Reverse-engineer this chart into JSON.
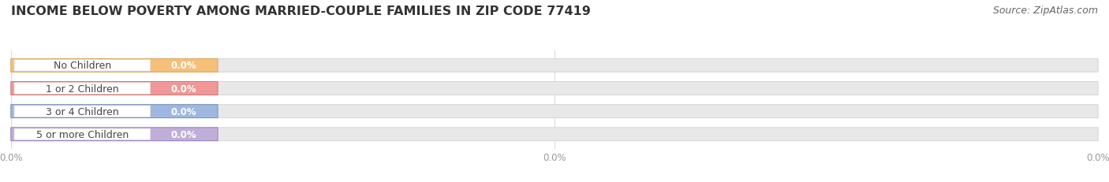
{
  "title": "INCOME BELOW POVERTY AMONG MARRIED-COUPLE FAMILIES IN ZIP CODE 77419",
  "source": "Source: ZipAtlas.com",
  "categories": [
    "No Children",
    "1 or 2 Children",
    "3 or 4 Children",
    "5 or more Children"
  ],
  "values": [
    0.0,
    0.0,
    0.0,
    0.0
  ],
  "bar_colors": [
    "#f5c078",
    "#f09898",
    "#a0b8e0",
    "#c0aed8"
  ],
  "bar_edge_colors": [
    "#d8a050",
    "#d06868",
    "#6888b8",
    "#9070b8"
  ],
  "background_color": "#ffffff",
  "bar_bg_color": "#e8e8e8",
  "bar_bg_edge_color": "#d0d0d0",
  "white_pill_color": "#ffffff",
  "white_pill_edge": "#dddddd",
  "label_color": "#444444",
  "value_text_color": "#ffffff",
  "title_fontsize": 11.5,
  "source_fontsize": 9,
  "label_fontsize": 9,
  "value_fontsize": 8.5,
  "tick_fontsize": 8.5,
  "tick_color": "#999999",
  "figsize": [
    14.06,
    2.32
  ],
  "dpi": 100,
  "x_ticks": [
    0.0,
    50.0,
    100.0
  ],
  "x_tick_labels": [
    "0.0%",
    "0.0%",
    "0.0%"
  ]
}
